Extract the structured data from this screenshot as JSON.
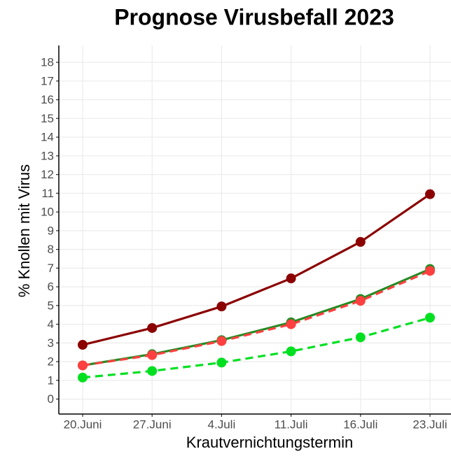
{
  "chart_data": {
    "type": "line",
    "title": "Prognose Virusbefall 2023",
    "x_label": "Krautvernichtungstermin",
    "y_label": "% Knollen mit Virus",
    "categories": [
      "20.Juni",
      "27.Juni",
      "4.Juli",
      "11.Juli",
      "16.Juli",
      "23.Juli"
    ],
    "series": [
      {
        "color": "#8b0000",
        "dashed": false,
        "values": [
          2.9,
          3.8,
          4.95,
          6.45,
          8.4,
          10.95
        ]
      },
      {
        "color": "#228b22",
        "dashed": false,
        "values": [
          1.8,
          2.4,
          3.15,
          4.1,
          5.35,
          6.95
        ]
      },
      {
        "color": "#ff4040",
        "dashed": true,
        "values": [
          1.8,
          2.35,
          3.1,
          4.0,
          5.25,
          6.85
        ]
      },
      {
        "color": "#00e020",
        "dashed": true,
        "values": [
          1.15,
          1.5,
          1.95,
          2.55,
          3.3,
          4.35
        ]
      }
    ],
    "ylim": [
      -0.8,
      18.9
    ],
    "yticks": [
      0,
      1,
      2,
      3,
      4,
      5,
      6,
      7,
      8,
      9,
      10,
      11,
      12,
      13,
      14,
      15,
      16,
      17,
      18
    ],
    "grid": true
  }
}
